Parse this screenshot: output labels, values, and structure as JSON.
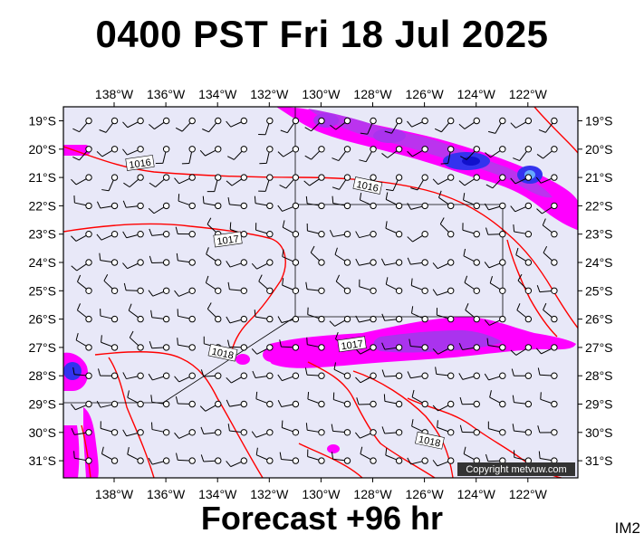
{
  "title": "0400 PST Fri 18 Jul 2025",
  "subtitle": "Forecast +96 hr",
  "corner_label": "IM2",
  "copyright": "Copyright metvuw.com",
  "colors": {
    "background": "#e8e8f8",
    "isobar": "#ff0000",
    "rain_light": "#ff00ff",
    "rain_moderate": "#aa33ee",
    "rain_heavy": "#1111dd",
    "barb": "#000000"
  },
  "map": {
    "lon_labels": [
      "138°W",
      "136°W",
      "134°W",
      "132°W",
      "130°W",
      "128°W",
      "126°W",
      "124°W",
      "122°W"
    ],
    "lat_labels": [
      "19°S",
      "20°S",
      "21°S",
      "22°S",
      "23°S",
      "24°S",
      "25°S",
      "26°S",
      "27°S",
      "28°S",
      "29°S",
      "30°S",
      "31°S"
    ],
    "isobar_labels": [
      {
        "text": "1016",
        "lon": -137.0,
        "lat": -20.5
      },
      {
        "text": "1016",
        "lon": -128.2,
        "lat": -21.3
      },
      {
        "text": "1017",
        "lon": -133.6,
        "lat": -23.2
      },
      {
        "text": "1018",
        "lon": -133.8,
        "lat": -27.2
      },
      {
        "text": "1017",
        "lon": -128.8,
        "lat": -26.9
      },
      {
        "text": "1018",
        "lon": -125.8,
        "lat": -30.3
      }
    ]
  }
}
